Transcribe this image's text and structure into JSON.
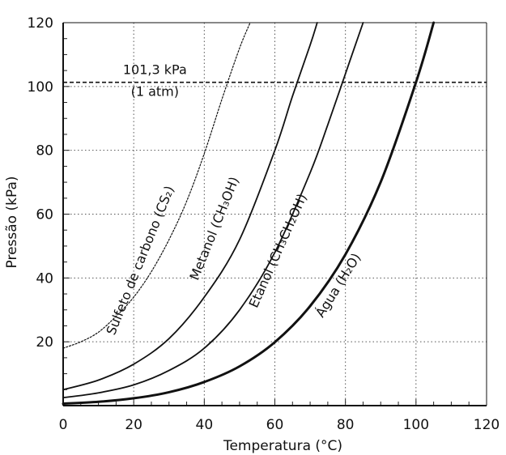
{
  "chart_data": {
    "type": "line",
    "xlabel": "Temperatura (°C)",
    "ylabel": "Pressão (kPa)",
    "xlim": [
      0,
      120
    ],
    "ylim": [
      0,
      120
    ],
    "xticks": [
      0,
      20,
      40,
      60,
      80,
      100,
      120
    ],
    "yticks": [
      20,
      40,
      60,
      80,
      100,
      120
    ],
    "grid": true,
    "reference_line": {
      "y": 101.3,
      "label_1": "101,3 kPa",
      "label_2": "(1 atm)",
      "style": "dashed"
    },
    "series": [
      {
        "name": "Sulfeto de carbono (CS₂)",
        "style": "dashed",
        "x": [
          0,
          5,
          10,
          15,
          20,
          25,
          30,
          35,
          40,
          45,
          50,
          53
        ],
        "y": [
          18,
          20,
          23,
          28,
          34,
          42,
          52,
          64,
          79,
          96,
          112,
          120
        ]
      },
      {
        "name": "Metanol (CH₃OH)",
        "style": "solid",
        "x": [
          0,
          10,
          20,
          30,
          40,
          50,
          60,
          65,
          70,
          72
        ],
        "y": [
          5,
          8,
          13,
          21,
          34,
          52,
          80,
          97,
          113,
          120
        ]
      },
      {
        "name": "Etanol (CH₃CH₂OH)",
        "style": "solid",
        "x": [
          0,
          10,
          20,
          30,
          40,
          50,
          60,
          70,
          75,
          80,
          85
        ],
        "y": [
          2.5,
          4,
          6.5,
          11,
          18,
          30,
          48,
          73,
          88,
          104,
          120
        ]
      },
      {
        "name": "Água (H₂O)",
        "style": "solid",
        "x": [
          0,
          10,
          20,
          30,
          40,
          50,
          60,
          70,
          80,
          90,
          100,
          105
        ],
        "y": [
          0.6,
          1.2,
          2.3,
          4.2,
          7.4,
          12.3,
          19.9,
          31.2,
          47.4,
          70.1,
          101.3,
          120
        ]
      }
    ]
  }
}
